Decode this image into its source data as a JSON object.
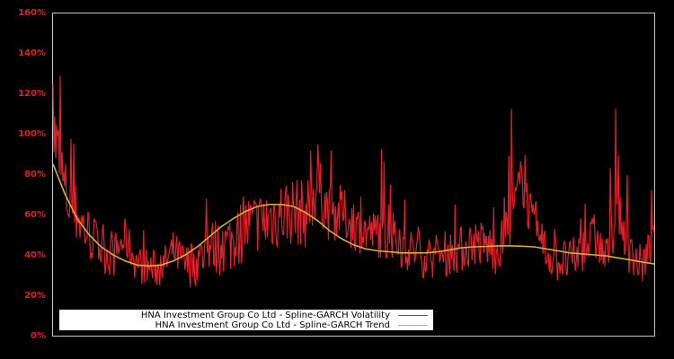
{
  "chart_data": {
    "type": "line",
    "title": "",
    "xlabel": "",
    "ylabel": "",
    "ylim": [
      0,
      160
    ],
    "y_ticks": [
      "0%",
      "20%",
      "40%",
      "60%",
      "80%",
      "100%",
      "120%",
      "140%",
      "160%"
    ],
    "x_ticks": [],
    "grid": false,
    "legend_position": "lower-left",
    "x": [
      0,
      2,
      4,
      6,
      8,
      10,
      12,
      14,
      16,
      18,
      20,
      22,
      24,
      26,
      28,
      30,
      32,
      34,
      36,
      38,
      40,
      42,
      44,
      46,
      48,
      50,
      52,
      54,
      56,
      58,
      60,
      62,
      64,
      66,
      68,
      70,
      72,
      74,
      76,
      78,
      80,
      82,
      84,
      86,
      88,
      90,
      92,
      94,
      96,
      98,
      100
    ],
    "series": [
      {
        "name": "HNA Investment Group Co Ltd - Spline-GARCH Volatility",
        "color": "#e0202a",
        "values": [
          125,
          70,
          60,
          50,
          42,
          38,
          62,
          35,
          33,
          30,
          48,
          28,
          27,
          40,
          30,
          35,
          45,
          42,
          50,
          55,
          60,
          58,
          95,
          70,
          78,
          65,
          62,
          60,
          55,
          48,
          42,
          38,
          36,
          40,
          42,
          50,
          45,
          38,
          70,
          120,
          60,
          40,
          32,
          30,
          45,
          60,
          35,
          90,
          42,
          33,
          62
        ]
      },
      {
        "name": "HNA Investment Group Co Ltd - Spline-GARCH Trend",
        "color": "#d4b13a",
        "values": [
          85,
          70,
          58,
          50,
          44,
          40,
          37,
          35,
          34.5,
          35,
          37,
          40,
          44,
          49,
          54,
          58,
          61.5,
          64,
          65,
          65,
          64,
          61,
          57,
          52,
          48,
          45,
          43,
          42,
          41.5,
          41,
          41,
          41,
          41.5,
          42.5,
          43.5,
          44,
          44.2,
          44.5,
          44.5,
          44.3,
          44,
          43,
          42,
          41,
          40.5,
          40,
          39.5,
          38.5,
          37.5,
          36.5,
          35.5
        ]
      }
    ]
  },
  "legend": {
    "items": [
      {
        "label": "HNA Investment Group Co Ltd - Spline-GARCH Volatility",
        "color": "#e0202a"
      },
      {
        "label": "HNA Investment Group Co Ltd - Spline-GARCH Trend",
        "color": "#d4b13a"
      }
    ]
  },
  "axis": {
    "y_labels": [
      "160%",
      "140%",
      "120%",
      "100%",
      "80%",
      "60%",
      "40%",
      "20%",
      "0%"
    ]
  }
}
